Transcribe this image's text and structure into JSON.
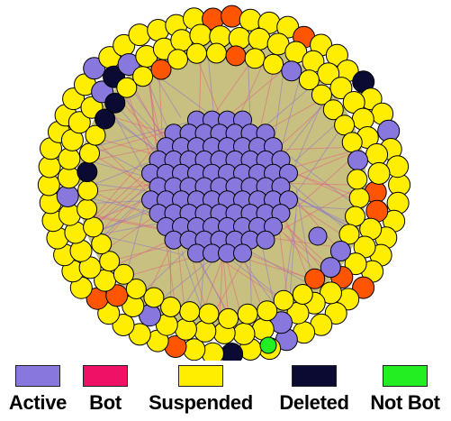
{
  "legend": {
    "items": [
      {
        "key": "active",
        "label": "Active",
        "color": "#8877dd"
      },
      {
        "key": "bot",
        "label": "Bot",
        "color": "#ee1166"
      },
      {
        "key": "suspended",
        "label": "Suspended",
        "color": "#ffee00"
      },
      {
        "key": "deleted",
        "label": "Deleted",
        "color": "#0a0a33"
      },
      {
        "key": "notbot",
        "label": "Not Bot",
        "color": "#22ee22"
      }
    ]
  },
  "colors": {
    "active": "#8877dd",
    "suspended": "#ffee00",
    "deleted": "#0a0a33",
    "notbot": "#22ee22",
    "orange": "#ff5500",
    "edge_fill": "#c8c080",
    "edge_pink": "#e06080",
    "edge_purple": "#8877cc"
  }
}
